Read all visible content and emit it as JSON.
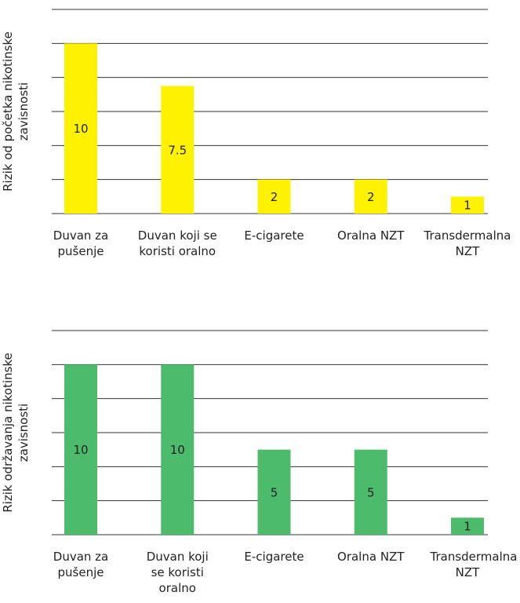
{
  "chart_data": [
    {
      "type": "bar",
      "y_label": "Rizik od početka nikotinske zavisnosti",
      "categories": [
        "Duvan za pušenje",
        "Duvan koji se koristi oralno",
        "E-cigarete",
        "Oralna NZT",
        "Transdermalna NZT"
      ],
      "values": [
        10,
        7.5,
        2,
        2,
        1
      ],
      "color": "#fff200",
      "ylim": [
        0,
        12
      ],
      "yticks": [
        0,
        2,
        4,
        6,
        8,
        10,
        12
      ],
      "grid": true
    },
    {
      "type": "bar",
      "y_label": "Rizik održavanja nikotinske zavisnosti",
      "categories": [
        "Duvan za pušenje",
        "Duvan koji se koristi oralno",
        "E-cigarete",
        "Oralna NZT",
        "Transdermalna NZT"
      ],
      "values": [
        10,
        10,
        5,
        5,
        1
      ],
      "color": "#4cbb6c",
      "ylim": [
        0,
        12
      ],
      "yticks": [
        0,
        2,
        4,
        6,
        8,
        10,
        12
      ],
      "grid": true
    }
  ]
}
